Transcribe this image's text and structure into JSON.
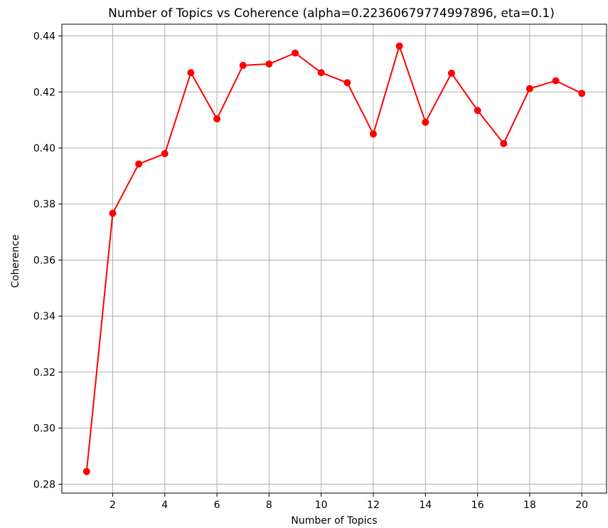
{
  "chart_data": {
    "type": "line",
    "title": "Number of Topics vs Coherence (alpha=0.22360679774997896, eta=0.1)",
    "xlabel": "Number of Topics",
    "ylabel": "Coherence",
    "x": [
      1,
      2,
      3,
      4,
      5,
      6,
      7,
      8,
      9,
      10,
      11,
      12,
      13,
      14,
      15,
      16,
      17,
      18,
      19,
      20
    ],
    "series": [
      {
        "values": [
          0.2845,
          0.3767,
          0.3943,
          0.398,
          0.4269,
          0.4104,
          0.4295,
          0.43,
          0.4339,
          0.4269,
          0.4233,
          0.405,
          0.4364,
          0.4092,
          0.4267,
          0.4134,
          0.4016,
          0.4212,
          0.424,
          0.4195
        ],
        "color": "#ff0000",
        "marker": "circle"
      }
    ],
    "xticks": [
      2,
      4,
      6,
      8,
      10,
      12,
      14,
      16,
      18,
      20
    ],
    "xtick_labels": [
      "2",
      "4",
      "6",
      "8",
      "10",
      "12",
      "14",
      "16",
      "18",
      "20"
    ],
    "yticks": [
      0.28,
      0.3,
      0.32,
      0.34,
      0.36,
      0.38,
      0.4,
      0.42,
      0.44
    ],
    "ytick_labels": [
      "0.28",
      "0.30",
      "0.32",
      "0.34",
      "0.36",
      "0.38",
      "0.40",
      "0.42",
      "0.44"
    ],
    "xlim": [
      0.05,
      20.95
    ],
    "ylim": [
      0.2768,
      0.4442
    ],
    "grid": true,
    "grid_color": "#b0b0b0",
    "axis_color": "#000000"
  }
}
